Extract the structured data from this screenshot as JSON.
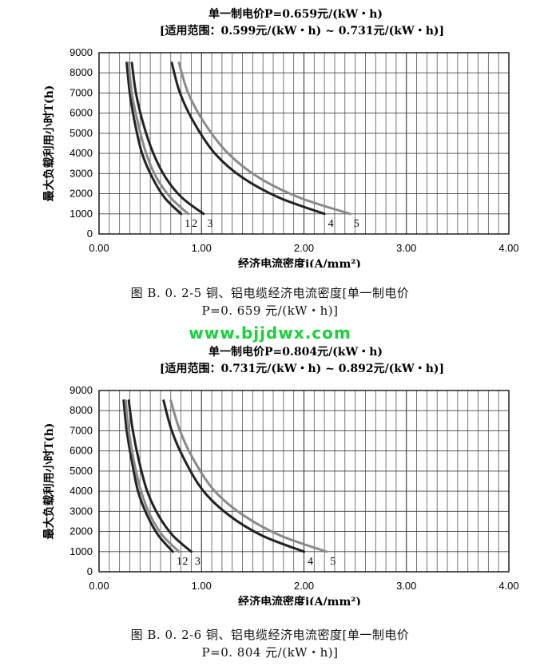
{
  "watermark": "www.bjjdwx.com",
  "captions": [
    {
      "line1": "图 B. 0. 2-5   铜、铝电缆经济电流密度[单一制电价",
      "line2": "P=0. 659 元/(kW・h)]"
    },
    {
      "line1": "图 B. 0. 2-6   铜、铝电缆经济电流密度[单一制电价",
      "line2": "P=0. 804 元/(kW・h)]"
    }
  ],
  "chart_data": [
    {
      "type": "line",
      "title": "单一制电价P=0.659元/(kW・h)",
      "subtitle": "[适用范围：0.599元/(kW・h) ~ 0.731元/(kW・h)]",
      "xlabel": "经济电流密度j(A/mm²)",
      "ylabel": "最大负载利用小时T(h)",
      "xlim": [
        0,
        4
      ],
      "ylim": [
        0,
        9000
      ],
      "xticks": [
        "0.00",
        "1.00",
        "2.00",
        "3.00",
        "4.00"
      ],
      "yticks": [
        "0",
        "1000",
        "2000",
        "3000",
        "4000",
        "5000",
        "6000",
        "7000",
        "8000",
        "9000"
      ],
      "grid": true,
      "series": [
        {
          "name": "1",
          "color": "#222222",
          "x": [
            0.27,
            0.3,
            0.35,
            0.42,
            0.52,
            0.64,
            0.8
          ],
          "y": [
            8500,
            7000,
            5500,
            4000,
            2800,
            1800,
            1000
          ]
        },
        {
          "name": "2",
          "color": "#8a8a8a",
          "x": [
            0.29,
            0.32,
            0.38,
            0.46,
            0.56,
            0.7,
            0.87
          ],
          "y": [
            8500,
            7000,
            5500,
            4000,
            2800,
            1800,
            1000
          ]
        },
        {
          "name": "3",
          "color": "#222222",
          "x": [
            0.32,
            0.36,
            0.43,
            0.53,
            0.65,
            0.81,
            1.02
          ],
          "y": [
            8500,
            7000,
            5500,
            4000,
            2800,
            1800,
            1000
          ]
        },
        {
          "name": "4",
          "color": "#222222",
          "x": [
            0.71,
            0.79,
            0.93,
            1.13,
            1.4,
            1.76,
            2.2
          ],
          "y": [
            8500,
            7000,
            5500,
            4000,
            2800,
            1800,
            1000
          ]
        },
        {
          "name": "5",
          "color": "#8a8a8a",
          "x": [
            0.78,
            0.87,
            1.03,
            1.26,
            1.56,
            1.96,
            2.45
          ],
          "y": [
            8500,
            7000,
            5500,
            4000,
            2800,
            1800,
            1000
          ]
        }
      ]
    },
    {
      "type": "line",
      "title": "单一制电价P=0.804元/(kW・h)",
      "subtitle": "[适用范围：0.731元/(kW・h) ~ 0.892元/(kW・h)]",
      "xlabel": "经济电流密度j(A/mm²)",
      "ylabel": "最大负载利用小时T(h)",
      "xlim": [
        0,
        4
      ],
      "ylim": [
        0,
        9000
      ],
      "xticks": [
        "0.00",
        "1.00",
        "2.00",
        "3.00",
        "4.00"
      ],
      "yticks": [
        "0",
        "1000",
        "2000",
        "3000",
        "4000",
        "5000",
        "6000",
        "7000",
        "8000",
        "9000"
      ],
      "grid": true,
      "series": [
        {
          "name": "1",
          "color": "#222222",
          "x": [
            0.24,
            0.27,
            0.32,
            0.38,
            0.47,
            0.58,
            0.72
          ],
          "y": [
            8500,
            7000,
            5500,
            4000,
            2800,
            1800,
            1000
          ]
        },
        {
          "name": "2",
          "color": "#8a8a8a",
          "x": [
            0.26,
            0.29,
            0.34,
            0.41,
            0.5,
            0.62,
            0.78
          ],
          "y": [
            8500,
            7000,
            5500,
            4000,
            2800,
            1800,
            1000
          ]
        },
        {
          "name": "3",
          "color": "#222222",
          "x": [
            0.29,
            0.33,
            0.39,
            0.47,
            0.58,
            0.72,
            0.9
          ],
          "y": [
            8500,
            7000,
            5500,
            4000,
            2800,
            1800,
            1000
          ]
        },
        {
          "name": "4",
          "color": "#222222",
          "x": [
            0.63,
            0.71,
            0.84,
            1.02,
            1.27,
            1.59,
            2.0
          ],
          "y": [
            8500,
            7000,
            5500,
            4000,
            2800,
            1800,
            1000
          ]
        },
        {
          "name": "5",
          "color": "#8a8a8a",
          "x": [
            0.7,
            0.79,
            0.93,
            1.13,
            1.41,
            1.77,
            2.22
          ],
          "y": [
            8500,
            7000,
            5500,
            4000,
            2800,
            1800,
            1000
          ]
        }
      ]
    }
  ]
}
